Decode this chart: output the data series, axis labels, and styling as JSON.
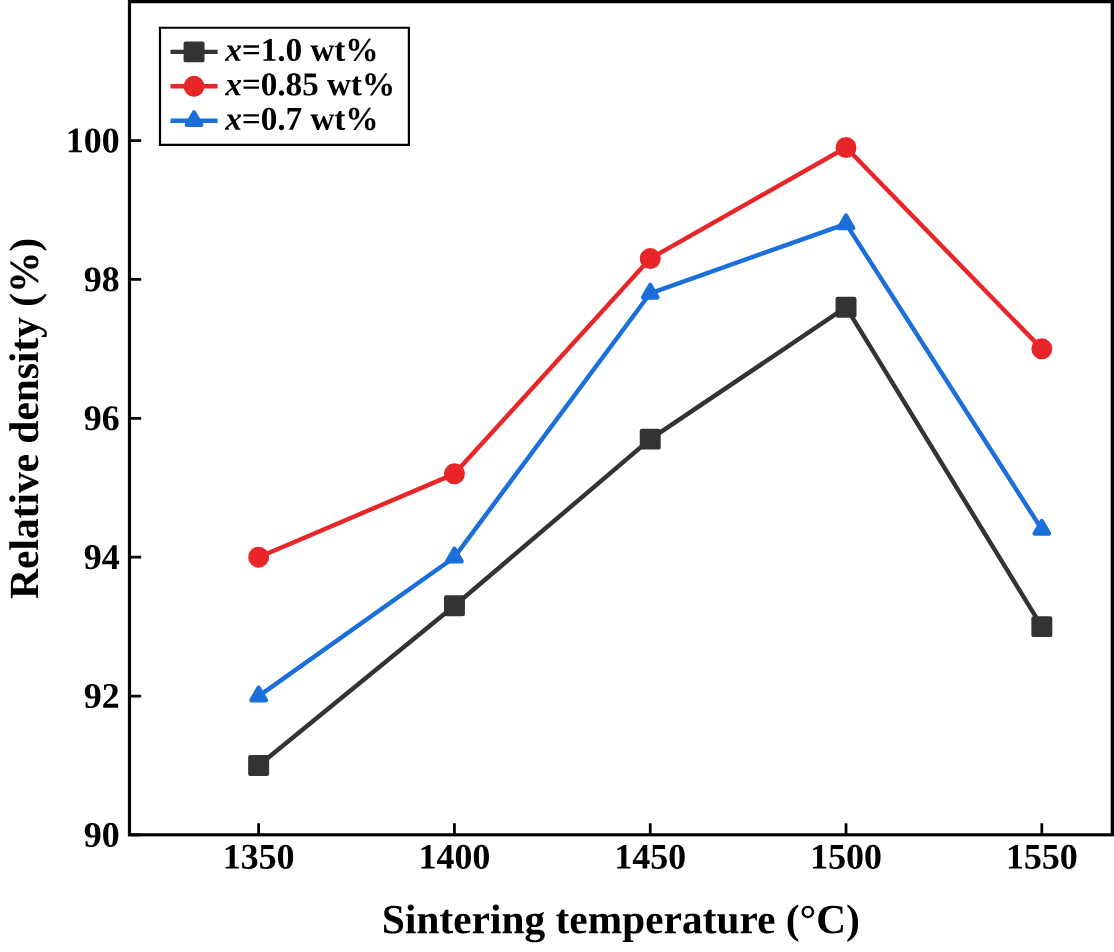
{
  "chart_data": {
    "type": "line",
    "xlabel": "Sintering temperature (°C)",
    "ylabel": "Relative density (%)",
    "x": [
      1350,
      1400,
      1450,
      1500,
      1550
    ],
    "xlim": [
      1317,
      1568
    ],
    "ylim": [
      90,
      102
    ],
    "xticks": [
      1350,
      1400,
      1450,
      1500,
      1550
    ],
    "yticks": [
      90,
      92,
      94,
      96,
      98,
      100
    ],
    "legend": "top left",
    "grid": false,
    "line_style": "solid",
    "series": [
      {
        "name": "*x*=1.0 wt%",
        "color": "#333333",
        "marker": "square",
        "values": [
          91.0,
          93.3,
          95.7,
          97.6,
          93.0
        ]
      },
      {
        "name": "*x*=0.85 wt%",
        "color": "#e8262a",
        "marker": "circle",
        "values": [
          94.0,
          95.2,
          98.3,
          99.9,
          97.0
        ]
      },
      {
        "name": "*x*=0.7 wt%",
        "color": "#1b6fdb",
        "marker": "triangle",
        "values": [
          92.0,
          94.0,
          97.8,
          98.8,
          94.4
        ]
      }
    ]
  }
}
